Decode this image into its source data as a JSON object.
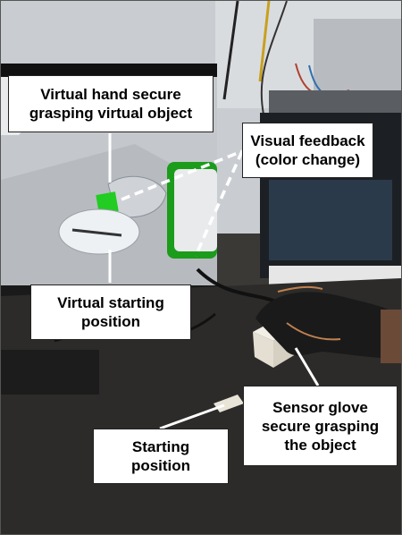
{
  "labels": {
    "virtual_hand": [
      "Virtual hand secure",
      "grasping virtual object"
    ],
    "visual_feedback": [
      "Visual feedback",
      "(color change)"
    ],
    "virtual_start": [
      "Virtual starting",
      "position"
    ],
    "sensor_glove": [
      "Sensor glove",
      "secure grasping",
      "the object"
    ],
    "starting_position": [
      "Starting",
      "position"
    ]
  },
  "colors": {
    "highlight_green": "#22cc22",
    "screen_bg": "#c4c8cc",
    "desk": "#2c2b29"
  }
}
